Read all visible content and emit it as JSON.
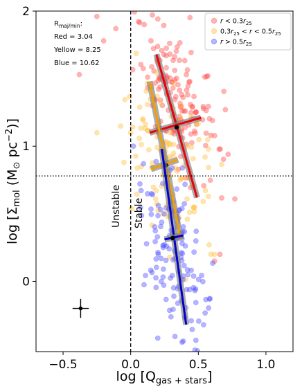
{
  "chart_data": {
    "type": "scatter",
    "xlabel": "log [Q_gas+stars]",
    "ylabel": "log [Σ_mol (M⊙ pc⁻²)]",
    "xlim": [
      -0.7,
      1.2
    ],
    "ylim": [
      -0.52,
      2.0
    ],
    "xticks": [
      -0.5,
      0.0,
      0.5,
      1.0
    ],
    "yticks": [
      0,
      1,
      2
    ],
    "xtick_labels": [
      "−0.5",
      "0.0",
      "0.5",
      "1.0"
    ],
    "ytick_labels": [
      "0",
      "1",
      "2"
    ],
    "grid": false,
    "legend_position": "top-right",
    "reference_lines": [
      {
        "orientation": "vertical",
        "value": 0.0,
        "style": "dashed"
      },
      {
        "orientation": "horizontal",
        "value": 0.78,
        "style": "dotted"
      }
    ],
    "side_labels": [
      "Unstable",
      "Stable"
    ],
    "annotation": {
      "title": "R_maj/min:",
      "lines": [
        "Red = 3.04",
        "Yellow = 8.25",
        "Blue = 10.62"
      ]
    },
    "typical_error": {
      "x": -0.37,
      "y": -0.2,
      "xerr": 0.06,
      "yerr": 0.07
    },
    "series": [
      {
        "name": "r < 0.3r25",
        "color": "#ff4d4d",
        "center": [
          0.35,
          1.35
        ],
        "spread": [
          0.13,
          0.26
        ],
        "n": 150,
        "seed": 11,
        "fit_major": [
          [
            0.19,
            1.68
          ],
          [
            0.49,
            0.62
          ]
        ],
        "fit_minor": [
          [
            0.14,
            1.1
          ],
          [
            0.52,
            1.21
          ]
        ],
        "fit_color": "#e8000b",
        "fit_center": [
          0.34,
          1.14
        ],
        "outliers": [
          [
            -0.38,
            1.53
          ],
          [
            -0.25,
            1.96
          ],
          [
            -0.11,
            1.87
          ],
          [
            -0.2,
            1.78
          ],
          [
            0.77,
            0.61
          ],
          [
            0.7,
            1.27
          ],
          [
            0.72,
            0.94
          ],
          [
            0.66,
            0.2
          ],
          [
            0.57,
            1.52
          ],
          [
            0.62,
            0.15
          ],
          [
            0.15,
            1.78
          ],
          [
            0.1,
            1.9
          ]
        ]
      },
      {
        "name": "0.3r25 < r < 0.5r25",
        "color": "#ffbf3f",
        "center": [
          0.27,
          0.88
        ],
        "spread": [
          0.13,
          0.32
        ],
        "n": 110,
        "seed": 23,
        "fit_major": [
          [
            0.14,
            1.48
          ],
          [
            0.37,
            0.31
          ]
        ],
        "fit_minor": [
          [
            0.15,
            0.83
          ],
          [
            0.35,
            0.9
          ]
        ],
        "fit_color": "#f2a000",
        "fit_center": [
          0.26,
          0.86
        ],
        "outliers": [
          [
            -0.25,
            1.1
          ],
          [
            -0.05,
            0.88
          ],
          [
            0.58,
            0.27
          ],
          [
            0.62,
            0.2
          ],
          [
            0.55,
            0.92
          ],
          [
            0.0,
            1.1
          ]
        ]
      },
      {
        "name": "r > 0.5r25",
        "color": "#4d4dff",
        "center": [
          0.33,
          0.2
        ],
        "spread": [
          0.11,
          0.3
        ],
        "n": 135,
        "seed": 37,
        "fit_major": [
          [
            0.23,
            0.98
          ],
          [
            0.41,
            -0.32
          ]
        ],
        "fit_minor": [
          [
            0.25,
            0.31
          ],
          [
            0.39,
            0.34
          ]
        ],
        "fit_color": "#0000cc",
        "fit_center": [
          0.31,
          0.32
        ],
        "outliers": [
          [
            0.02,
            1.0
          ],
          [
            0.2,
            -0.42
          ],
          [
            0.38,
            -0.45
          ]
        ]
      }
    ]
  }
}
